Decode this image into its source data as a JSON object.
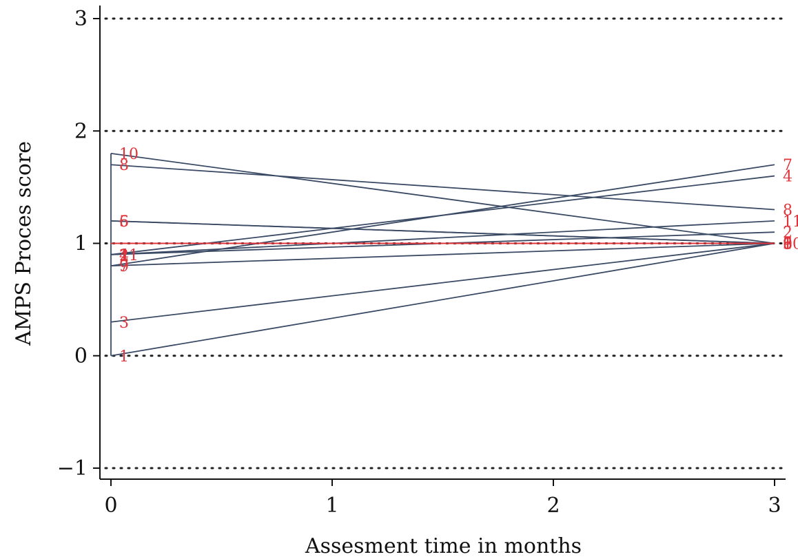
{
  "chart_data": {
    "type": "line",
    "title": "",
    "xlabel": "Assesment time in months",
    "ylabel": "AMPS Proces score",
    "xlim": [
      0,
      3
    ],
    "ylim": [
      -1,
      3
    ],
    "x_ticks": [
      0,
      1,
      2,
      3
    ],
    "y_ticks": [
      -1,
      0,
      1,
      2,
      3
    ],
    "x_tick_labels": [
      "0",
      "1",
      "2",
      "3"
    ],
    "y_tick_labels": [
      "−1",
      "0",
      "1",
      "2",
      "3"
    ],
    "grid": true,
    "legend": "none",
    "line_color": "#3a4a64",
    "label_color": "#e0343c",
    "reference_line": {
      "y": 1.0,
      "color": "#e0343c"
    },
    "baseline_range": {
      "x": 0,
      "y": [
        0.0,
        1.8
      ]
    },
    "series": [
      {
        "name": "1",
        "x": [
          0,
          3
        ],
        "y": [
          0.0,
          1.0
        ]
      },
      {
        "name": "2",
        "x": [
          0,
          3
        ],
        "y": [
          0.9,
          1.1
        ]
      },
      {
        "name": "3",
        "x": [
          0,
          3
        ],
        "y": [
          0.3,
          1.0
        ]
      },
      {
        "name": "4",
        "x": [
          0,
          3
        ],
        "y": [
          0.9,
          1.6
        ]
      },
      {
        "name": "5",
        "x": [
          0,
          3
        ],
        "y": [
          1.2,
          1.0
        ]
      },
      {
        "name": "6",
        "x": [
          0,
          3
        ],
        "y": [
          1.2,
          1.0
        ]
      },
      {
        "name": "7",
        "x": [
          0,
          3
        ],
        "y": [
          0.8,
          1.7
        ]
      },
      {
        "name": "8",
        "x": [
          0,
          3
        ],
        "y": [
          1.7,
          1.3
        ]
      },
      {
        "name": "9",
        "x": [
          0,
          3
        ],
        "y": [
          0.8,
          1.0
        ]
      },
      {
        "name": "10",
        "x": [
          0,
          3
        ],
        "y": [
          1.8,
          1.0
        ]
      },
      {
        "name": "11",
        "x": [
          0,
          3
        ],
        "y": [
          0.9,
          1.2
        ]
      }
    ]
  }
}
